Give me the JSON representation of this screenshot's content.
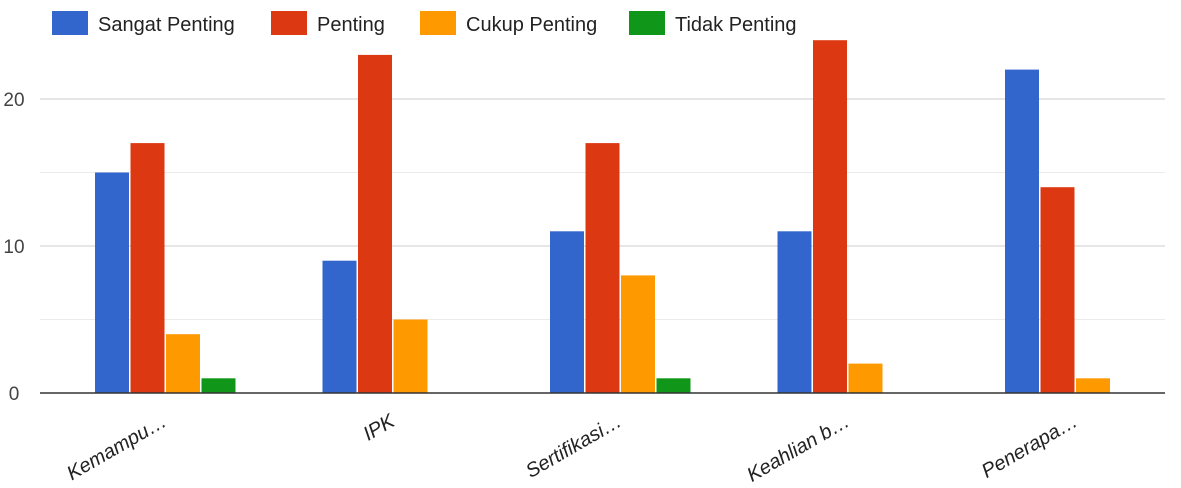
{
  "chart_data": {
    "type": "bar",
    "categories": [
      "Kemampu…",
      "IPK",
      "Sertifikasi…",
      "Keahlian b…",
      "Penerapa…"
    ],
    "series": [
      {
        "name": "Sangat Penting",
        "color": "#3366cc",
        "values": [
          15,
          9,
          11,
          11,
          22
        ]
      },
      {
        "name": "Penting",
        "color": "#dc3912",
        "values": [
          17,
          23,
          17,
          24,
          14
        ]
      },
      {
        "name": "Cukup Penting",
        "color": "#ff9900",
        "values": [
          4,
          5,
          8,
          2,
          1
        ]
      },
      {
        "name": "Tidak Penting",
        "color": "#109618",
        "values": [
          1,
          0,
          1,
          0,
          0
        ]
      }
    ],
    "ylim": [
      0,
      24
    ],
    "yticks": [
      0,
      10,
      20
    ],
    "grid": true,
    "legend_position": "top-left"
  }
}
